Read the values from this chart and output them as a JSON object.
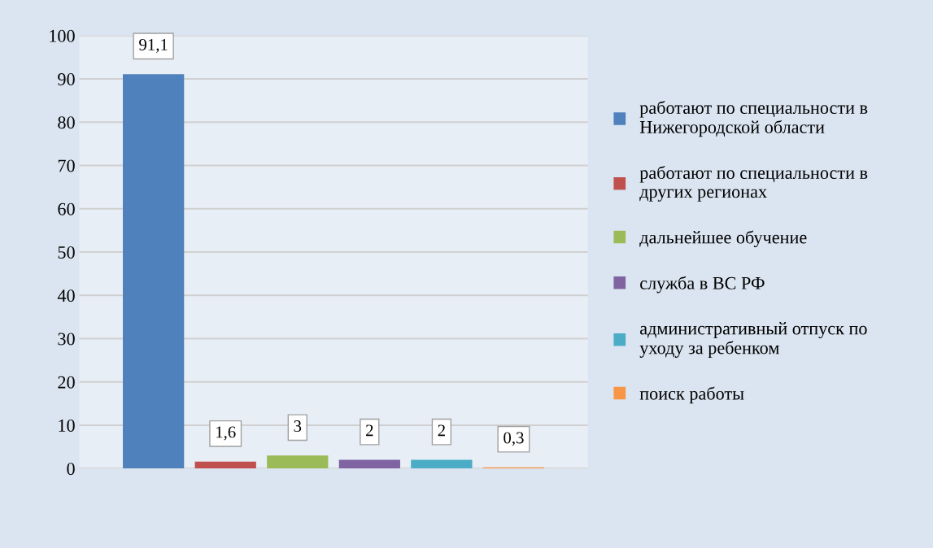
{
  "chart_data": {
    "type": "bar",
    "categories": [
      null
    ],
    "series": [
      {
        "name": "работают по специальности в Нижегородской области",
        "color": "#4f81bd",
        "values": [
          91.1
        ],
        "value_labels": [
          "91,1"
        ]
      },
      {
        "name": "работают по специальности в других регионах",
        "color": "#c0504d",
        "values": [
          1.6
        ],
        "value_labels": [
          "1,6"
        ]
      },
      {
        "name": "дальнейшее обучение",
        "color": "#9bbb59",
        "values": [
          3
        ],
        "value_labels": [
          "3"
        ]
      },
      {
        "name": "служба в ВС РФ",
        "color": "#8064a2",
        "values": [
          2
        ],
        "value_labels": [
          "2"
        ]
      },
      {
        "name": "административный отпуск по уходу за ребенком",
        "color": "#4bacc6",
        "values": [
          2
        ],
        "value_labels": [
          "2"
        ]
      },
      {
        "name": "поиск работы",
        "color": "#f79646",
        "values": [
          0.3
        ],
        "value_labels": [
          "0,3"
        ]
      }
    ],
    "ylim": [
      0,
      100
    ],
    "yticks": [
      0,
      10,
      20,
      30,
      40,
      50,
      60,
      70,
      80,
      90,
      100
    ],
    "grid": "y",
    "legend": "right"
  }
}
